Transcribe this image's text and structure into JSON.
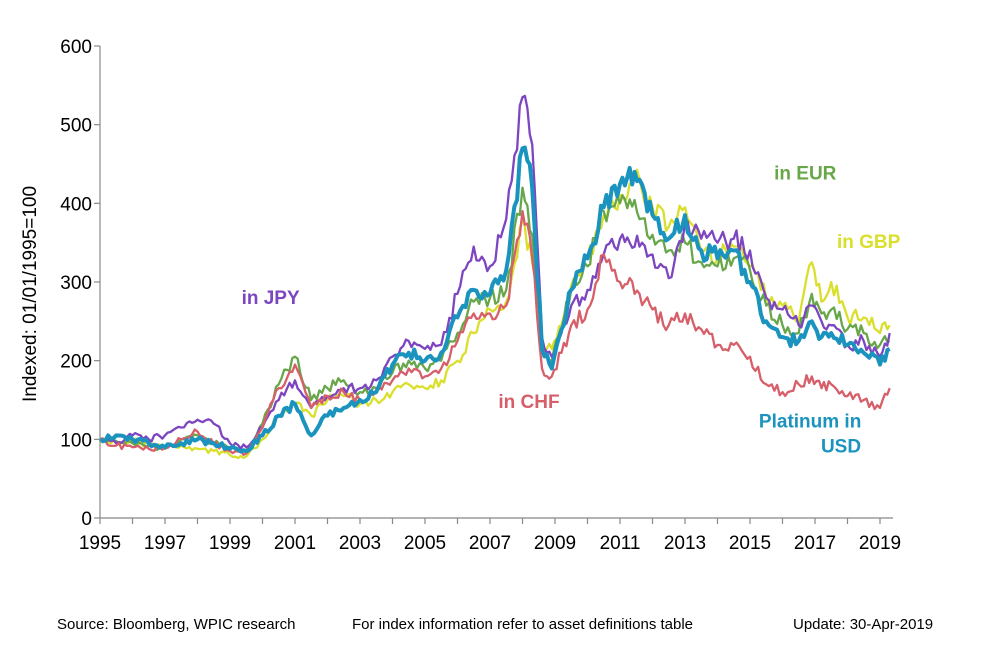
{
  "chart_data": {
    "type": "line",
    "ylabel": "Indexed: 01/01/1995=100",
    "ylim": [
      0,
      600
    ],
    "xlim": [
      1995,
      2019.4
    ],
    "y_ticks": [
      0,
      100,
      200,
      300,
      400,
      500,
      600
    ],
    "x_ticks": [
      "1995",
      "1997",
      "1999",
      "2001",
      "2003",
      "2005",
      "2007",
      "2009",
      "2011",
      "2013",
      "2015",
      "2017",
      "2019"
    ],
    "grid": false,
    "series": [
      {
        "name": "in GBP",
        "color": "#d9df2b",
        "x": [
          1995,
          1995.5,
          1996,
          1996.5,
          1997,
          1997.5,
          1998,
          1998.5,
          1999,
          1999.5,
          2000,
          2000.5,
          2001,
          2001.5,
          2002,
          2002.5,
          2003,
          2003.5,
          2004,
          2004.5,
          2005,
          2005.5,
          2006,
          2006.5,
          2007,
          2007.5,
          2008,
          2008.3,
          2008.6,
          2008.9,
          2009.2,
          2009.5,
          2010,
          2010.5,
          2011,
          2011.3,
          2011.6,
          2012,
          2012.5,
          2013,
          2013.5,
          2014,
          2014.5,
          2015,
          2015.5,
          2016,
          2016.5,
          2016.9,
          2017.2,
          2017.5,
          2018,
          2018.5,
          2019,
          2019.3
        ],
        "y": [
          100,
          95,
          98,
          93,
          90,
          92,
          88,
          85,
          80,
          78,
          100,
          130,
          145,
          130,
          150,
          155,
          145,
          150,
          160,
          170,
          165,
          175,
          200,
          235,
          265,
          275,
          380,
          325,
          215,
          215,
          245,
          295,
          330,
          385,
          410,
          425,
          430,
          395,
          370,
          395,
          340,
          330,
          345,
          320,
          280,
          270,
          250,
          325,
          275,
          300,
          255,
          255,
          235,
          245
        ]
      },
      {
        "name": "in EUR",
        "color": "#67a74a",
        "x": [
          1995,
          1995.5,
          1996,
          1996.5,
          1997,
          1997.5,
          1998,
          1998.5,
          1999,
          1999.5,
          2000,
          2000.5,
          2001,
          2001.5,
          2002,
          2002.5,
          2003,
          2003.5,
          2004,
          2004.5,
          2005,
          2005.5,
          2006,
          2006.5,
          2007,
          2007.5,
          2008,
          2008.3,
          2008.6,
          2008.9,
          2009.2,
          2009.5,
          2010,
          2010.5,
          2011,
          2011.3,
          2011.6,
          2012,
          2012.5,
          2013,
          2013.5,
          2014,
          2014.5,
          2015,
          2015.5,
          2016,
          2016.5,
          2016.9,
          2017.2,
          2017.5,
          2018,
          2018.5,
          2019,
          2019.3
        ],
        "y": [
          100,
          98,
          95,
          92,
          88,
          100,
          105,
          95,
          90,
          85,
          120,
          170,
          205,
          150,
          165,
          175,
          160,
          165,
          185,
          200,
          190,
          200,
          235,
          275,
          280,
          290,
          420,
          360,
          215,
          200,
          240,
          290,
          320,
          390,
          400,
          405,
          380,
          360,
          340,
          350,
          325,
          320,
          330,
          315,
          270,
          245,
          235,
          285,
          260,
          265,
          240,
          235,
          220,
          225
        ]
      },
      {
        "name": "in JPY",
        "color": "#7d45c0",
        "x": [
          1995,
          1995.5,
          1996,
          1996.5,
          1997,
          1997.5,
          1998,
          1998.5,
          1999,
          1999.5,
          2000,
          2000.5,
          2001,
          2001.5,
          2002,
          2002.5,
          2003,
          2003.5,
          2004,
          2004.5,
          2005,
          2005.5,
          2006,
          2006.5,
          2007,
          2007.5,
          2008,
          2008.3,
          2008.6,
          2008.9,
          2009.2,
          2009.5,
          2010,
          2010.5,
          2011,
          2011.3,
          2011.6,
          2012,
          2012.5,
          2013,
          2013.5,
          2014,
          2014.5,
          2015,
          2015.5,
          2016,
          2016.5,
          2016.9,
          2017.2,
          2017.5,
          2018,
          2018.5,
          2019,
          2019.3
        ],
        "y": [
          100,
          95,
          105,
          100,
          105,
          115,
          125,
          120,
          95,
          90,
          115,
          150,
          175,
          140,
          155,
          165,
          165,
          175,
          205,
          225,
          215,
          220,
          285,
          345,
          320,
          380,
          535,
          475,
          230,
          205,
          235,
          270,
          290,
          335,
          355,
          350,
          345,
          335,
          305,
          375,
          355,
          350,
          355,
          340,
          280,
          265,
          245,
          270,
          250,
          245,
          220,
          225,
          205,
          235
        ]
      },
      {
        "name": "in CHF",
        "color": "#d65f6a",
        "x": [
          1995,
          1995.5,
          1996,
          1996.5,
          1997,
          1997.5,
          1998,
          1998.5,
          1999,
          1999.5,
          2000,
          2000.5,
          2001,
          2001.5,
          2002,
          2002.5,
          2003,
          2003.5,
          2004,
          2004.5,
          2005,
          2005.5,
          2006,
          2006.5,
          2007,
          2007.5,
          2008,
          2008.3,
          2008.6,
          2008.9,
          2009.2,
          2009.5,
          2010,
          2010.5,
          2011,
          2011.3,
          2011.6,
          2012,
          2012.5,
          2013,
          2013.5,
          2014,
          2014.5,
          2015,
          2015.5,
          2016,
          2016.5,
          2016.9,
          2017.2,
          2017.5,
          2018,
          2018.5,
          2019,
          2019.3
        ],
        "y": [
          100,
          92,
          90,
          88,
          90,
          100,
          110,
          95,
          85,
          82,
          115,
          165,
          195,
          140,
          155,
          160,
          150,
          160,
          175,
          190,
          180,
          190,
          225,
          260,
          260,
          270,
          390,
          330,
          190,
          180,
          210,
          245,
          265,
          335,
          300,
          305,
          285,
          265,
          245,
          260,
          240,
          220,
          220,
          205,
          170,
          160,
          170,
          180,
          165,
          170,
          155,
          150,
          140,
          165
        ]
      },
      {
        "name": "Platinum in USD",
        "color": "#1a93be",
        "x": [
          1995,
          1995.5,
          1996,
          1996.5,
          1997,
          1997.5,
          1998,
          1998.5,
          1999,
          1999.5,
          2000,
          2000.5,
          2001,
          2001.5,
          2002,
          2002.5,
          2003,
          2003.5,
          2004,
          2004.5,
          2005,
          2005.5,
          2006,
          2006.5,
          2007,
          2007.5,
          2008,
          2008.3,
          2008.6,
          2008.9,
          2009.2,
          2009.5,
          2010,
          2010.5,
          2011,
          2011.3,
          2011.6,
          2012,
          2012.5,
          2013,
          2013.5,
          2014,
          2014.5,
          2015,
          2015.5,
          2016,
          2016.5,
          2016.9,
          2017.2,
          2017.5,
          2018,
          2018.5,
          2019,
          2019.3
        ],
        "y": [
          100,
          105,
          100,
          95,
          90,
          95,
          100,
          95,
          88,
          85,
          105,
          130,
          145,
          105,
          130,
          140,
          150,
          160,
          195,
          210,
          200,
          210,
          255,
          290,
          285,
          315,
          470,
          420,
          215,
          190,
          240,
          290,
          330,
          395,
          425,
          445,
          430,
          385,
          355,
          385,
          340,
          330,
          340,
          300,
          250,
          230,
          225,
          250,
          230,
          235,
          220,
          210,
          195,
          215
        ]
      }
    ],
    "labels": [
      {
        "text": "in JPY",
        "series": "in JPY",
        "x": 2000.25,
        "y": 272
      },
      {
        "text": "in CHF",
        "series": "in CHF",
        "x": 2008.2,
        "y": 140
      },
      {
        "text": "in EUR",
        "series": "in EUR",
        "x": 2016.7,
        "y": 430
      },
      {
        "text": "in GBP",
        "series": "in GBP",
        "x": 2018.65,
        "y": 343
      },
      {
        "text": "Platinum in",
        "series": "Platinum in USD",
        "x": 2016.85,
        "y": 115
      },
      {
        "text": "USD",
        "series": "Platinum in USD",
        "x": 2017.8,
        "y": 83
      }
    ]
  },
  "footer": {
    "source": "Source: Bloomberg, WPIC research",
    "info": "For index information refer to asset definitions table",
    "update": "Update: 30-Apr-2019"
  }
}
